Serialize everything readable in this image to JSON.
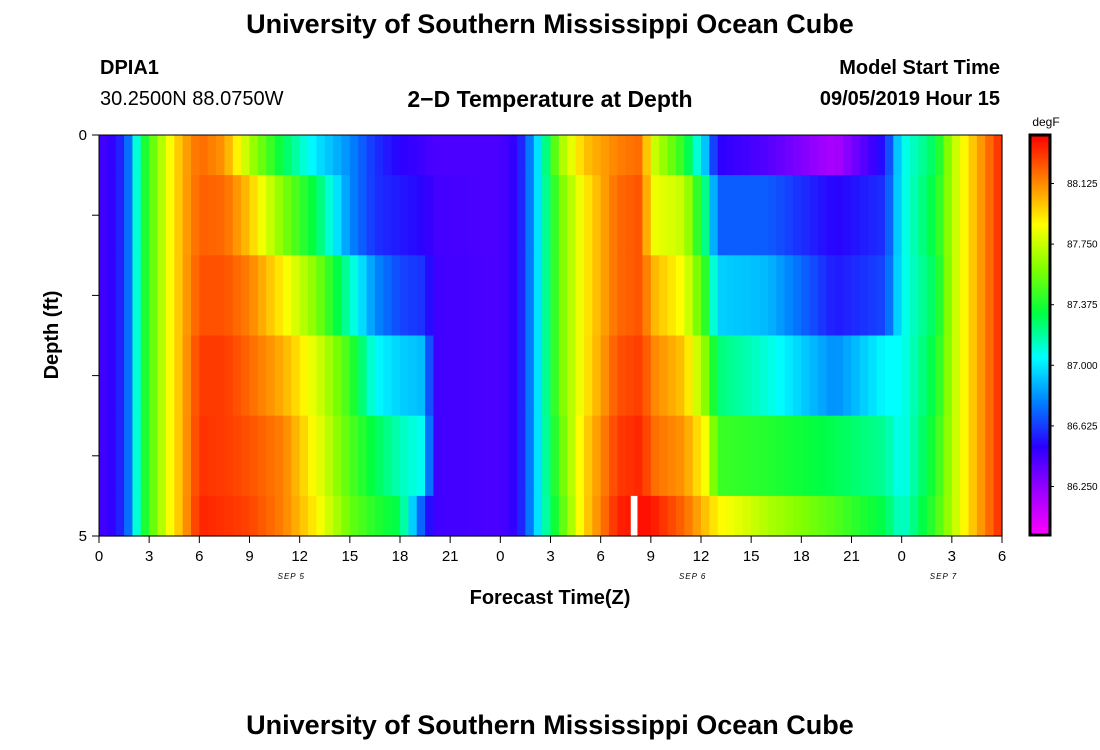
{
  "header": {
    "title": "University of Southern Mississippi Ocean Cube",
    "station": "DPIA1",
    "coords": "30.2500N 88.0750W",
    "subtitle": "2−D Temperature at Depth",
    "model_label": "Model Start Time",
    "model_time": "09/05/2019 Hour 15"
  },
  "footer": {
    "title": "University of Southern Mississippi Ocean Cube"
  },
  "colorbar": {
    "unit": "degF",
    "ticks": [
      "88.125",
      "87.750",
      "87.375",
      "87.000",
      "86.625",
      "86.250"
    ],
    "tick_values": [
      88.125,
      87.75,
      87.375,
      87.0,
      86.625,
      86.25
    ],
    "range": [
      85.95,
      88.425
    ],
    "colors": [
      "#ff00ff",
      "#9c00ff",
      "#2a00ff",
      "#0080ff",
      "#00ffff",
      "#00ff40",
      "#80ff00",
      "#ffff00",
      "#ff8000",
      "#ff0000"
    ]
  },
  "chart_data": {
    "type": "heatmap",
    "title": "2−D Temperature at Depth",
    "xlabel": "Forecast Time(Z)",
    "ylabel": "Depth (ft)",
    "x_tick_labels": [
      "0",
      "3",
      "6",
      "9",
      "12",
      "15",
      "18",
      "21",
      "0",
      "3",
      "6",
      "9",
      "12",
      "15",
      "18",
      "21",
      "0",
      "3",
      "6"
    ],
    "x_hours": [
      0,
      3,
      6,
      9,
      12,
      15,
      18,
      21,
      24,
      27,
      30,
      33,
      36,
      39,
      42,
      45,
      48,
      51,
      54
    ],
    "date_labels": [
      {
        "text": "SEP 5",
        "hour": 11.5
      },
      {
        "text": "SEP 6",
        "hour": 35.5
      },
      {
        "text": "SEP 7",
        "hour": 50.5
      }
    ],
    "y_tick_labels": [
      "0",
      "5"
    ],
    "y_range": [
      0,
      5
    ],
    "z_unit": "degF",
    "z_range": [
      85.95,
      88.425
    ],
    "depth_levels": [
      0,
      1,
      2,
      3,
      4,
      5
    ],
    "depth_rows_keys": [
      "0-0.5",
      "0.5-1.5",
      "1.5-2.5",
      "2.5-3.5",
      "3.5-4.5",
      "4.5-5"
    ],
    "knots": [
      {
        "hour": 0,
        "temps": [
          86.43,
          86.43,
          86.43,
          86.43,
          86.43,
          86.43
        ]
      },
      {
        "hour": 1,
        "temps": [
          86.5,
          86.5,
          86.5,
          86.5,
          86.5,
          86.5
        ]
      },
      {
        "hour": 1.7,
        "temps": [
          86.7,
          86.7,
          86.7,
          86.7,
          86.7,
          86.7
        ]
      },
      {
        "hour": 2.5,
        "temps": [
          87.3,
          87.3,
          87.3,
          87.3,
          87.3,
          87.3
        ]
      },
      {
        "hour": 4,
        "temps": [
          87.8,
          87.8,
          87.8,
          87.8,
          87.8,
          87.8
        ]
      },
      {
        "hour": 5,
        "temps": [
          88.05,
          88.05,
          88.05,
          88.05,
          88.05,
          88.05
        ]
      },
      {
        "hour": 6,
        "temps": [
          88.2,
          88.22,
          88.25,
          88.3,
          88.32,
          88.35
        ]
      },
      {
        "hour": 7.5,
        "temps": [
          88.1,
          88.2,
          88.25,
          88.3,
          88.3,
          88.32
        ]
      },
      {
        "hour": 9,
        "temps": [
          87.7,
          88.0,
          88.15,
          88.2,
          88.25,
          88.28
        ]
      },
      {
        "hour": 11,
        "temps": [
          87.3,
          87.6,
          87.9,
          88.05,
          88.15,
          88.15
        ]
      },
      {
        "hour": 13,
        "temps": [
          87.0,
          87.3,
          87.6,
          87.8,
          87.85,
          87.9
        ]
      },
      {
        "hour": 15,
        "temps": [
          86.8,
          86.8,
          87.15,
          87.45,
          87.5,
          87.55
        ]
      },
      {
        "hour": 16.5,
        "temps": [
          86.6,
          86.6,
          86.8,
          87.05,
          87.3,
          87.4
        ]
      },
      {
        "hour": 18,
        "temps": [
          86.5,
          86.55,
          86.65,
          86.95,
          87.15,
          87.3
        ]
      },
      {
        "hour": 19.5,
        "temps": [
          86.45,
          86.5,
          86.6,
          86.9,
          87.05,
          86.6
        ]
      },
      {
        "hour": 20,
        "temps": [
          86.42,
          86.44,
          86.45,
          86.45,
          86.45,
          86.45
        ]
      },
      {
        "hour": 24,
        "temps": [
          86.42,
          86.42,
          86.42,
          86.42,
          86.42,
          86.42
        ]
      },
      {
        "hour": 25,
        "temps": [
          86.5,
          86.5,
          86.5,
          86.5,
          86.5,
          86.5
        ]
      },
      {
        "hour": 25.5,
        "temps": [
          86.65,
          86.65,
          86.65,
          86.65,
          86.65,
          86.65
        ]
      },
      {
        "hour": 26.5,
        "temps": [
          87.1,
          87.1,
          87.1,
          87.1,
          87.1,
          87.1
        ]
      },
      {
        "hour": 27.5,
        "temps": [
          87.65,
          87.55,
          87.55,
          87.55,
          87.5,
          87.45
        ]
      },
      {
        "hour": 29,
        "temps": [
          88.0,
          87.9,
          87.9,
          87.9,
          87.95,
          87.95
        ]
      },
      {
        "hour": 31,
        "temps": [
          88.15,
          88.2,
          88.2,
          88.25,
          88.3,
          88.35
        ]
      },
      {
        "hour": 32.5,
        "temps": [
          88.2,
          88.25,
          88.25,
          88.3,
          88.35,
          88.4
        ]
      },
      {
        "hour": 33,
        "temps": [
          87.8,
          87.85,
          88.05,
          88.15,
          88.2,
          88.38
        ]
      },
      {
        "hour": 35,
        "temps": [
          87.4,
          87.75,
          87.85,
          88.0,
          88.1,
          88.2
        ]
      },
      {
        "hour": 36.3,
        "temps": [
          86.9,
          87.2,
          87.4,
          87.6,
          87.85,
          88.0
        ]
      },
      {
        "hour": 37,
        "temps": [
          86.5,
          86.7,
          86.95,
          87.25,
          87.45,
          87.9
        ]
      },
      {
        "hour": 40,
        "temps": [
          86.4,
          86.7,
          86.9,
          87.1,
          87.4,
          87.7
        ]
      },
      {
        "hour": 44,
        "temps": [
          86.18,
          86.5,
          86.55,
          86.8,
          87.3,
          87.5
        ]
      },
      {
        "hour": 47,
        "temps": [
          86.55,
          86.6,
          86.65,
          87.05,
          87.2,
          87.3
        ]
      },
      {
        "hour": 48,
        "temps": [
          87.05,
          87.05,
          87.05,
          87.05,
          87.05,
          87.1
        ]
      },
      {
        "hour": 50,
        "temps": [
          87.3,
          87.35,
          87.3,
          87.35,
          87.4,
          87.45
        ]
      },
      {
        "hour": 51,
        "temps": [
          87.7,
          87.7,
          87.7,
          87.7,
          87.7,
          87.7
        ]
      },
      {
        "hour": 52,
        "temps": [
          87.95,
          87.95,
          87.95,
          87.95,
          87.95,
          87.95
        ]
      },
      {
        "hour": 54,
        "temps": [
          88.35,
          88.35,
          88.35,
          88.35,
          88.35,
          88.35
        ]
      }
    ],
    "missing": [
      {
        "hour_start": 31.8,
        "hour_end": 32.2,
        "depth_row": 5
      }
    ]
  }
}
